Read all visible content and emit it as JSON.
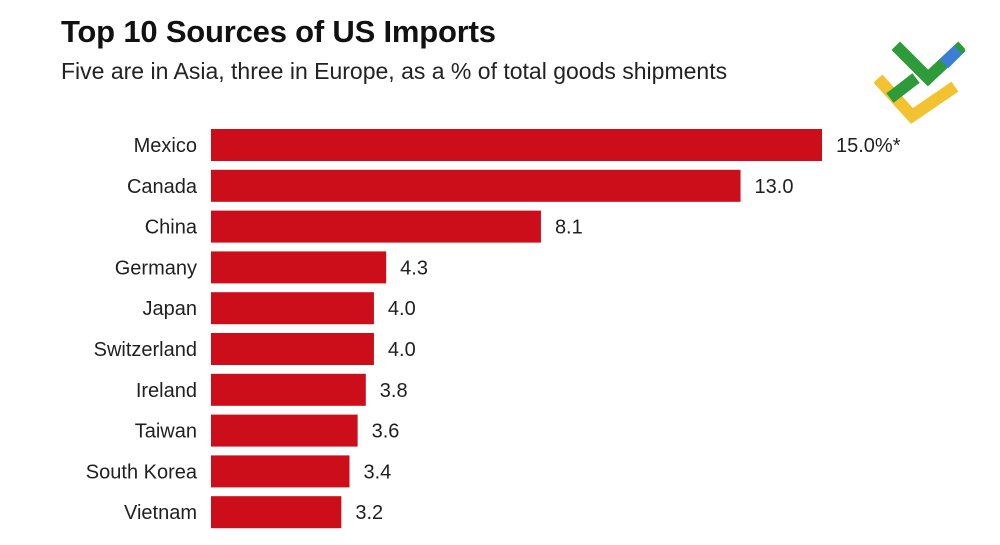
{
  "title": "Top 10 Sources of US Imports",
  "subtitle": "Five are in Asia, three in Europe, as a % of total goods shipments",
  "chart_data": {
    "type": "bar",
    "orientation": "horizontal",
    "title": "Top 10 Sources of US Imports",
    "subtitle": "Five are in Asia, three in Europe, as a % of total goods shipments",
    "xlabel": "",
    "ylabel": "",
    "xlim": [
      0,
      15
    ],
    "grid": false,
    "bar_color": "#cc0d1a",
    "categories": [
      "Mexico",
      "Canada",
      "China",
      "Germany",
      "Japan",
      "Switzerland",
      "Ireland",
      "Taiwan",
      "South Korea",
      "Vietnam"
    ],
    "values": [
      15.0,
      13.0,
      8.1,
      4.3,
      4.0,
      4.0,
      3.8,
      3.6,
      3.4,
      3.2
    ],
    "value_labels": [
      "15.0%*",
      "13.0",
      "8.1",
      "4.3",
      "4.0",
      "4.0",
      "3.8",
      "3.6",
      "3.4",
      "3.2"
    ]
  },
  "logo": {
    "icon": "brand-check-logo-icon",
    "colors": [
      "#f2c230",
      "#2e9b3a",
      "#3a7fd5"
    ]
  }
}
